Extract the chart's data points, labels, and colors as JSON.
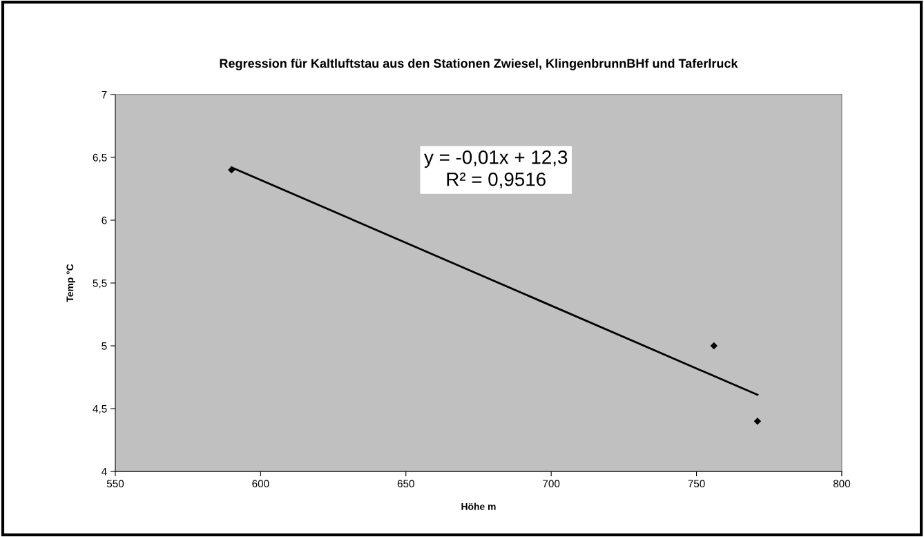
{
  "chart_data": {
    "type": "scatter",
    "title": "Regression für Kaltluftstau aus den Stationen Zwiesel, KlingenbrunnBHf und Taferlruck",
    "xlabel": "Höhe m",
    "ylabel": "Temp °C",
    "series": [
      {
        "color": "#000000",
        "marker": "diamond",
        "x": [
          590,
          756,
          771
        ],
        "values": [
          6.4,
          5.0,
          4.4
        ]
      },
      {
        "type": "line",
        "color": "#000000",
        "marker": "none",
        "line_style": "solid",
        "x": [
          590,
          771
        ],
        "values": [
          6.42,
          4.61
        ]
      }
    ],
    "annotations": [
      "y = -0,01x + 12,3",
      "R² = 0,9516"
    ],
    "xlim": [
      550,
      800
    ],
    "xticks": [
      550,
      600,
      650,
      700,
      750,
      800
    ],
    "ylim": [
      4,
      7
    ],
    "yticks": [
      4,
      {
        "value": 4.5,
        "label": "4,5"
      },
      5,
      {
        "value": 5.5,
        "label": "5,5"
      },
      6,
      {
        "value": 6.5,
        "label": "6,5"
      },
      7
    ],
    "grid": false,
    "legend": false
  }
}
